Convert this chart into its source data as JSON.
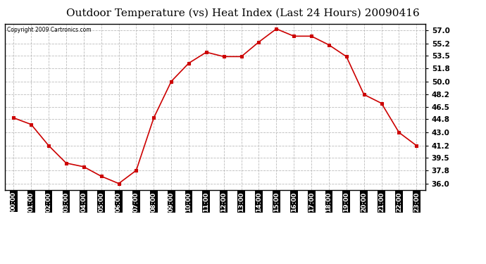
{
  "title": "Outdoor Temperature (vs) Heat Index (Last 24 Hours) 20090416",
  "copyright": "Copyright 2009 Cartronics.com",
  "x_labels": [
    "00:00",
    "01:00",
    "02:00",
    "03:00",
    "04:00",
    "05:00",
    "06:00",
    "07:00",
    "08:00",
    "09:00",
    "10:00",
    "11:00",
    "12:00",
    "13:00",
    "14:00",
    "15:00",
    "16:00",
    "17:00",
    "18:00",
    "19:00",
    "20:00",
    "21:00",
    "22:00",
    "23:00"
  ],
  "y_values": [
    45.0,
    44.1,
    41.2,
    38.8,
    38.3,
    37.0,
    36.0,
    37.8,
    45.0,
    50.0,
    52.5,
    54.0,
    53.4,
    53.4,
    55.4,
    57.2,
    56.2,
    56.2,
    55.0,
    53.4,
    48.2,
    47.0,
    43.0,
    41.2
  ],
  "line_color": "#cc0000",
  "marker_color": "#cc0000",
  "bg_color": "#ffffff",
  "grid_color": "#bbbbbb",
  "title_fontsize": 11,
  "y_ticks": [
    36.0,
    37.8,
    39.5,
    41.2,
    43.0,
    44.8,
    46.5,
    48.2,
    50.0,
    51.8,
    53.5,
    55.2,
    57.0
  ],
  "ylim": [
    35.1,
    57.9
  ],
  "xlim": [
    -0.5,
    23.5
  ],
  "xtick_bg": "#000000",
  "xtick_fg": "#ffffff"
}
